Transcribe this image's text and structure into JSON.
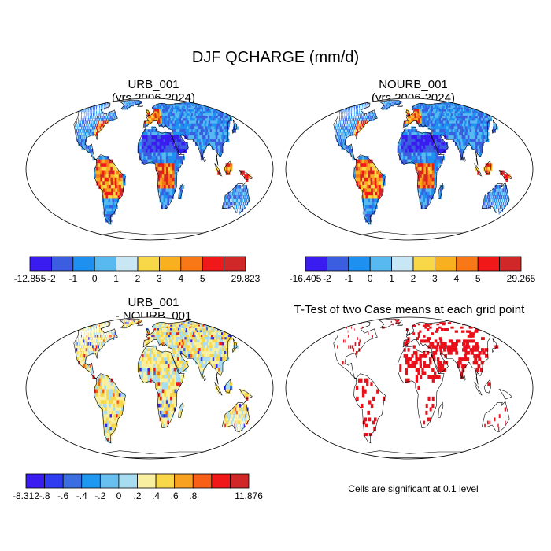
{
  "main_title": "DJF QCHARGE (mm/d)",
  "note": "Cells are significant at 0.1 level",
  "colors": {
    "ocean": "#ffffff",
    "coast": "#000000",
    "sig": "#e8101a"
  },
  "chart_data": [
    {
      "type": "heatmap",
      "projection": "Robinson world map",
      "title_lines": [
        "URB_001",
        "(yrs 2006-2024)"
      ],
      "colorbar": {
        "labels": [
          "-12.855",
          "-2",
          "-1",
          "0",
          "1",
          "2",
          "3",
          "4",
          "5",
          "29.823"
        ],
        "colors": [
          "#3a1cf0",
          "#3b5ee0",
          "#1e90f0",
          "#58b8f0",
          "#c8e6f4",
          "#f8d848",
          "#f8b020",
          "#f87818",
          "#f01818",
          "#d02828"
        ]
      }
    },
    {
      "type": "heatmap",
      "projection": "Robinson world map",
      "title_lines": [
        "NOURB_001",
        "(yrs 2006-2024)"
      ],
      "colorbar": {
        "labels": [
          "-16.405",
          "-2",
          "-1",
          "0",
          "1",
          "2",
          "3",
          "4",
          "5",
          "29.265"
        ],
        "colors": [
          "#3a1cf0",
          "#3b5ee0",
          "#1e90f0",
          "#58b8f0",
          "#c8e6f4",
          "#f8d848",
          "#f8b020",
          "#f87818",
          "#f01818",
          "#d02828"
        ]
      }
    },
    {
      "type": "heatmap",
      "projection": "Robinson world map",
      "title_lines": [
        "URB_001",
        "- NOURB_001"
      ],
      "colorbar": {
        "labels": [
          "-8.312",
          "-.8",
          "-.6",
          "-.4",
          "-.2",
          "0",
          ".2",
          ".4",
          ".6",
          ".8",
          "11.876"
        ],
        "colors": [
          "#3a1cf0",
          "#2f3cf0",
          "#3b6ee0",
          "#1e98f0",
          "#68c0f0",
          "#a8dcf0",
          "#f8f0a0",
          "#f8d848",
          "#f8a020",
          "#f86018",
          "#f01818",
          "#d02828"
        ]
      }
    },
    {
      "type": "heatmap",
      "projection": "Robinson world map",
      "title_lines": [
        "T-Test of two Case means at each grid point"
      ],
      "legend": "significance mask"
    }
  ]
}
